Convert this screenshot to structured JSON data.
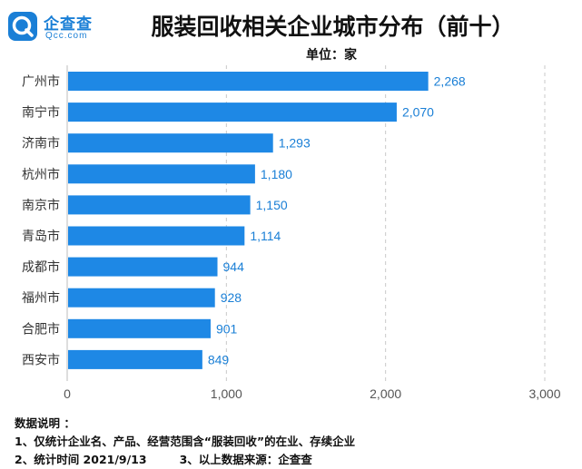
{
  "brand": {
    "name": "企查查",
    "sub": "Qcc.com",
    "logo_icon": "qcc-logo-icon",
    "color": "#1a7fd6"
  },
  "title": "服装回收相关企业城市分布（前十）",
  "unit": "单位：家",
  "chart_data": {
    "type": "bar",
    "orientation": "horizontal",
    "categories": [
      "广州市",
      "南宁市",
      "济南市",
      "杭州市",
      "南京市",
      "青岛市",
      "成都市",
      "福州市",
      "合肥市",
      "西安市"
    ],
    "values": [
      2268,
      2070,
      1293,
      1180,
      1150,
      1114,
      944,
      928,
      901,
      849
    ],
    "value_labels": [
      "2,268",
      "2,070",
      "1,293",
      "1,180",
      "1,150",
      "1,114",
      "944",
      "928",
      "901",
      "849"
    ],
    "xlim": [
      0,
      3000
    ],
    "xticks": [
      0,
      1000,
      2000,
      3000
    ],
    "xtick_labels": [
      "0",
      "1,000",
      "2,000",
      "3,000"
    ],
    "grid": "vertical dashed",
    "bar_color": "#1e88e5"
  },
  "notes": {
    "heading": "数据说明 ：",
    "line1": "1、仅统计企业名、产品、经营范围含“服装回收”的在业、存续企业",
    "line2a": "2、统计时间  2021/9/13",
    "line2b": "3、以上数据来源：企查查"
  }
}
